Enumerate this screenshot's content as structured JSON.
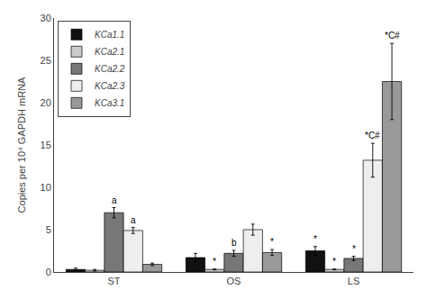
{
  "chart_data": {
    "type": "bar",
    "categories": [
      "ST",
      "OS",
      "LS"
    ],
    "series": [
      {
        "name": "KCa1.1",
        "color": "#111111",
        "values": [
          0.3,
          1.7,
          2.5
        ],
        "errors": [
          0.15,
          0.5,
          0.5
        ]
      },
      {
        "name": "KCa2.1",
        "color": "#cccccc",
        "values": [
          0.2,
          0.3,
          0.3
        ],
        "errors": [
          0.1,
          0.05,
          0.05
        ]
      },
      {
        "name": "KCa2.2",
        "color": "#777777",
        "values": [
          7.0,
          2.2,
          1.6
        ],
        "errors": [
          0.6,
          0.35,
          0.25
        ]
      },
      {
        "name": "KCa2.3",
        "color": "#eeeeee",
        "values": [
          4.9,
          5.0,
          13.2
        ],
        "errors": [
          0.35,
          0.65,
          2.0
        ]
      },
      {
        "name": "KCa3.1",
        "color": "#999999",
        "values": [
          0.9,
          2.3,
          22.5
        ],
        "errors": [
          0.15,
          0.35,
          4.5
        ]
      }
    ],
    "ylabel": "Copies per 10⁴ GAPDH mRNA",
    "ylim": [
      0,
      30
    ],
    "yticks": [
      0,
      5,
      10,
      15,
      20,
      25,
      30
    ],
    "grid": false,
    "legend": "upper left",
    "annotations": [
      {
        "category": "ST",
        "series": "KCa2.2",
        "text": "a"
      },
      {
        "category": "ST",
        "series": "KCa2.3",
        "text": "a"
      },
      {
        "category": "OS",
        "series": "KCa2.1",
        "text": "*"
      },
      {
        "category": "OS",
        "series": "KCa2.2",
        "text": "b"
      },
      {
        "category": "OS",
        "series": "KCa3.1",
        "text": "*"
      },
      {
        "category": "LS",
        "series": "KCa1.1",
        "text": "*"
      },
      {
        "category": "LS",
        "series": "KCa2.1",
        "text": "*"
      },
      {
        "category": "LS",
        "series": "KCa2.2",
        "text": "*"
      },
      {
        "category": "LS",
        "series": "KCa2.3",
        "text": "*C#"
      },
      {
        "category": "LS",
        "series": "KCa3.1",
        "text": "*C#"
      }
    ]
  }
}
